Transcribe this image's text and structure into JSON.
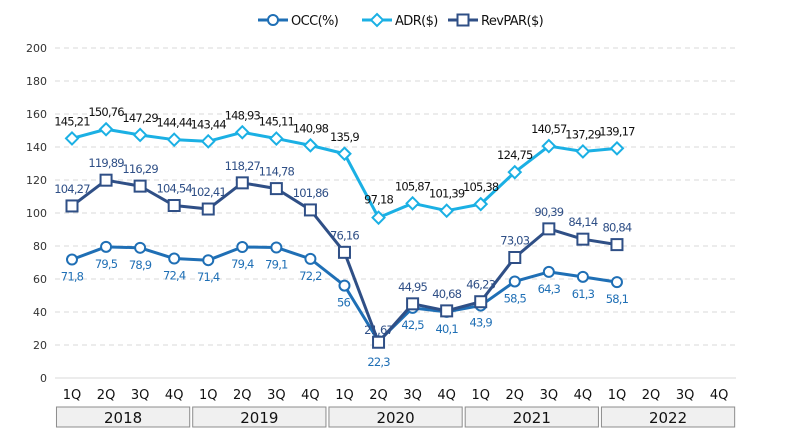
{
  "chart_data": {
    "type": "line",
    "title": "",
    "xlabel": "",
    "ylabel": "",
    "ylim": [
      0,
      200
    ],
    "yticks": [
      0,
      20,
      40,
      60,
      80,
      100,
      120,
      140,
      160,
      180,
      200
    ],
    "grid": true,
    "legend_position": "top-center",
    "categories": [
      "1Q",
      "2Q",
      "3Q",
      "4Q",
      "1Q",
      "2Q",
      "3Q",
      "4Q",
      "1Q",
      "2Q",
      "3Q",
      "4Q",
      "1Q",
      "2Q",
      "3Q",
      "4Q",
      "1Q",
      "2Q",
      "3Q",
      "4Q"
    ],
    "year_groups": [
      {
        "label": "2018",
        "span": 4
      },
      {
        "label": "2019",
        "span": 4
      },
      {
        "label": "2020",
        "span": 4
      },
      {
        "label": "2021",
        "span": 4
      },
      {
        "label": "2022",
        "span": 4
      }
    ],
    "series": [
      {
        "name": "OCC(%)",
        "marker": "circle",
        "color": "#1f6fb5",
        "label_color": "#1f6fb5",
        "label_position": "below",
        "values": [
          71.8,
          79.5,
          78.9,
          72.4,
          71.4,
          79.4,
          79.1,
          72.2,
          56,
          22.3,
          42.5,
          40.1,
          43.9,
          58.5,
          64.3,
          61.3,
          58.1,
          null,
          null,
          null
        ],
        "labels": [
          "71,8",
          "79,5",
          "78,9",
          "72,4",
          "71,4",
          "79,4",
          "79,1",
          "72,2",
          "56",
          "22,3",
          "42,5",
          "40,1",
          "43,9",
          "58,5",
          "64,3",
          "61,3",
          "58,1",
          null,
          null,
          null
        ]
      },
      {
        "name": "ADR($)",
        "marker": "diamond",
        "color": "#1bb0e4",
        "label_color": "#111111",
        "label_position": "above",
        "values": [
          145.21,
          150.76,
          147.29,
          144.44,
          143.44,
          148.93,
          145.11,
          140.98,
          135.9,
          97.18,
          105.87,
          101.39,
          105.38,
          124.75,
          140.57,
          137.29,
          139.17,
          null,
          null,
          null
        ],
        "labels": [
          "145,21",
          "150,76",
          "147,29",
          "144,44",
          "143,44",
          "148,93",
          "145,11",
          "140,98",
          "135,9",
          "97,18",
          "105,87",
          "101,39",
          "105,38",
          "124,75",
          "140,57",
          "137,29",
          "139,17",
          null,
          null,
          null
        ]
      },
      {
        "name": "RevPAR($)",
        "marker": "square",
        "color": "#2f4f86",
        "label_color": "#2f4f86",
        "label_position": "above",
        "values": [
          104.27,
          119.89,
          116.29,
          104.54,
          102.41,
          118.27,
          114.78,
          101.86,
          76.16,
          21.67,
          44.95,
          40.68,
          46.23,
          73.03,
          90.39,
          84.14,
          80.84,
          null,
          null,
          null
        ],
        "labels": [
          "104,27",
          "119,89",
          "116,29",
          "104,54",
          "102,41",
          "118,27",
          "114,78",
          "101,86",
          "76,16",
          "21,67",
          "44,95",
          "40,68",
          "46,23",
          "73,03",
          "90,39",
          "84,14",
          "80,84",
          null,
          null,
          null
        ]
      }
    ]
  }
}
